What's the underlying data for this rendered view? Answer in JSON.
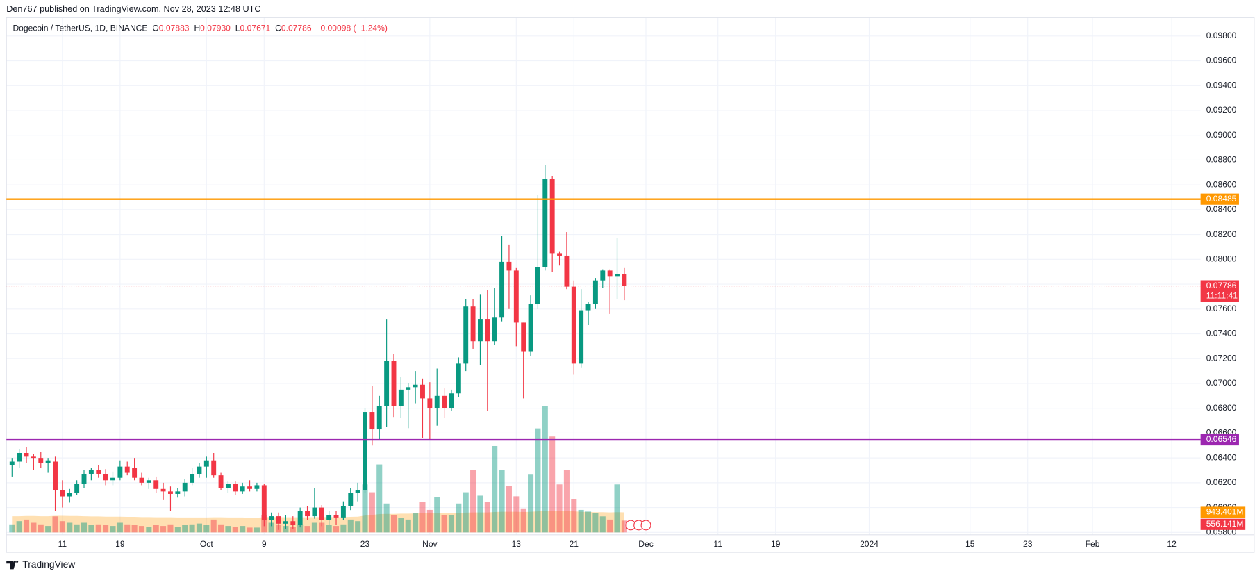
{
  "header": "Den767 published on TradingView.com, Nov 28, 2023 12:48 UTC",
  "footer": "TradingView",
  "chart_data": {
    "type": "candlestick",
    "legend": {
      "symbol": "Dogecoin / TetherUS, 1D, BINANCE",
      "color": "#f23645",
      "fields": [
        {
          "key": "O",
          "value": 0.07883,
          "label": "0.07883"
        },
        {
          "key": "H",
          "value": 0.0793,
          "label": "0.07930"
        },
        {
          "key": "L",
          "value": 0.07671,
          "label": "0.07671"
        },
        {
          "key": "C",
          "value": 0.07786,
          "label": "0.07786"
        }
      ],
      "change": "−0.00098 (−1.24%)"
    },
    "up_color": "#089981",
    "down_color": "#f23645",
    "volume_ma_color": "#ff9800",
    "grid": true,
    "categories": [
      null,
      null,
      null,
      null,
      null,
      null,
      null,
      "11",
      null,
      null,
      null,
      null,
      null,
      null,
      null,
      "19",
      null,
      null,
      null,
      null,
      null,
      null,
      null,
      null,
      null,
      null,
      null,
      "Oct",
      null,
      null,
      null,
      null,
      null,
      null,
      null,
      "9",
      null,
      null,
      null,
      null,
      null,
      null,
      null,
      null,
      null,
      null,
      null,
      null,
      null,
      "23",
      null,
      null,
      null,
      null,
      null,
      null,
      null,
      null,
      "Nov",
      null,
      null,
      null,
      null,
      null,
      null,
      null,
      null,
      null,
      null,
      null,
      "13",
      null,
      null,
      null,
      null,
      null,
      null,
      null,
      "21",
      null,
      null,
      null,
      null,
      null,
      null,
      null,
      null,
      null,
      "Dec",
      null,
      null,
      null,
      null,
      null,
      null,
      null,
      null,
      null,
      "11",
      null,
      null,
      null,
      null,
      null,
      null,
      null,
      "19",
      null,
      null,
      null,
      null,
      null,
      null,
      null,
      null,
      null,
      null,
      null,
      null,
      "2024",
      null,
      null,
      null,
      null,
      null,
      null,
      null,
      null,
      null,
      null,
      null,
      null,
      null,
      "15",
      null,
      null,
      null,
      null,
      null,
      null,
      null,
      "23",
      null,
      null,
      null,
      null,
      null,
      null,
      null,
      null,
      "Feb",
      null,
      null,
      null,
      null,
      null,
      null,
      null,
      null,
      null,
      null,
      "12",
      null,
      null,
      null,
      null
    ],
    "open": [
      0.0634,
      0.0637,
      0.0644,
      0.0641,
      0.064,
      0.0636,
      0.0637,
      0.0614,
      0.0609,
      0.0612,
      0.0619,
      0.0627,
      0.063,
      0.0627,
      0.0622,
      0.0624,
      0.0633,
      0.0632,
      0.0624,
      0.062,
      0.0622,
      0.0615,
      0.0613,
      0.0611,
      0.0613,
      0.062,
      0.0627,
      0.0633,
      0.0638,
      0.0626,
      0.0616,
      0.0619,
      0.0613,
      0.0617,
      0.0615,
      0.0618,
      0.059,
      0.0593,
      0.0587,
      0.0589,
      0.0586,
      0.0597,
      0.0593,
      0.06,
      0.059,
      0.0594,
      0.0592,
      0.0601,
      0.0612,
      0.0614,
      0.0677,
      0.0663,
      0.0682,
      0.0718,
      0.0682,
      0.0695,
      0.0697,
      0.0699,
      0.0688,
      0.068,
      0.069,
      0.068,
      0.0692,
      0.0716,
      0.0762,
      0.0734,
      0.0752,
      0.0734,
      0.0753,
      0.0798,
      0.0791,
      0.0749,
      0.0726,
      0.0764,
      0.0794,
      0.0865,
      0.0805,
      0.0803,
      0.0778,
      0.0716,
      0.0759,
      0.0764,
      0.0783,
      0.0791,
      0.0786,
      0.07883,
      null,
      null,
      null,
      null,
      null,
      null,
      null,
      null,
      null,
      null,
      null,
      null,
      null,
      null,
      null,
      null,
      null,
      null,
      null,
      null,
      null,
      null,
      null,
      null,
      null,
      null,
      null,
      null,
      null,
      null,
      null,
      null,
      null,
      null,
      null,
      null,
      null,
      null,
      null,
      null,
      null,
      null,
      null,
      null,
      null,
      null,
      null,
      null,
      null,
      null,
      null,
      null,
      null,
      null,
      null,
      null,
      null,
      null,
      null,
      null,
      null,
      null,
      null,
      null,
      null,
      null,
      null,
      null,
      null,
      null,
      null,
      null,
      null,
      null,
      null,
      null,
      null,
      null,
      null,
      null
    ],
    "high": [
      0.064,
      0.0647,
      0.0649,
      0.0643,
      0.0645,
      0.064,
      0.0641,
      0.0622,
      0.0615,
      0.0622,
      0.063,
      0.0632,
      0.0634,
      0.0631,
      0.0629,
      0.0638,
      0.0637,
      0.064,
      0.0628,
      0.0624,
      0.0625,
      0.062,
      0.0617,
      0.0616,
      0.0623,
      0.0632,
      0.0636,
      0.0641,
      0.0644,
      0.0628,
      0.0621,
      0.0621,
      0.062,
      0.0622,
      0.062,
      0.0619,
      0.0596,
      0.0596,
      0.0594,
      0.0593,
      0.06,
      0.0601,
      0.0616,
      0.0602,
      0.0597,
      0.0597,
      0.0605,
      0.0616,
      0.062,
      0.068,
      0.0698,
      0.069,
      0.0752,
      0.0724,
      0.0705,
      0.07,
      0.071,
      0.0704,
      0.0701,
      0.0712,
      0.0696,
      0.0695,
      0.0721,
      0.0768,
      0.0768,
      0.0772,
      0.0775,
      0.0777,
      0.0819,
      0.0812,
      0.0793,
      0.0749,
      0.0771,
      0.0852,
      0.0876,
      0.0867,
      0.0806,
      0.0822,
      0.0783,
      0.0776,
      0.0766,
      0.0785,
      0.0792,
      0.0792,
      0.0817,
      0.0793,
      null,
      null,
      null,
      null,
      null,
      null,
      null,
      null,
      null,
      null,
      null,
      null,
      null,
      null,
      null,
      null,
      null,
      null,
      null,
      null,
      null,
      null,
      null,
      null,
      null,
      null,
      null,
      null,
      null,
      null,
      null,
      null,
      null,
      null,
      null,
      null,
      null,
      null,
      null,
      null,
      null,
      null,
      null,
      null,
      null,
      null,
      null,
      null,
      null,
      null,
      null,
      null,
      null,
      null,
      null,
      null,
      null,
      null,
      null,
      null,
      null,
      null,
      null,
      null,
      null,
      null,
      null,
      null,
      null,
      null,
      null,
      null,
      null,
      null,
      null,
      null,
      null,
      null,
      null,
      null
    ],
    "low": [
      0.0625,
      0.0632,
      0.0636,
      0.063,
      0.0632,
      0.0628,
      0.0597,
      0.06,
      0.0604,
      0.061,
      0.0616,
      0.0622,
      0.0624,
      0.0618,
      0.0618,
      0.0622,
      0.0626,
      0.0622,
      0.0618,
      0.0615,
      0.0612,
      0.0606,
      0.0597,
      0.0608,
      0.0609,
      0.0618,
      0.0624,
      0.0624,
      0.0624,
      0.0614,
      0.0612,
      0.061,
      0.0611,
      0.0613,
      0.0613,
      0.0585,
      0.0585,
      0.0582,
      0.0583,
      0.0583,
      0.0584,
      0.059,
      0.0591,
      0.0585,
      0.0586,
      0.0586,
      0.059,
      0.0598,
      0.0605,
      0.0612,
      0.065,
      0.0655,
      0.0665,
      0.0673,
      0.0672,
      0.0664,
      0.0684,
      0.0656,
      0.0655,
      0.0666,
      0.0672,
      0.0678,
      0.0689,
      0.071,
      0.0728,
      0.0715,
      0.0678,
      0.0731,
      0.075,
      0.076,
      0.073,
      0.0688,
      0.0722,
      0.076,
      0.0791,
      0.079,
      0.0795,
      0.0776,
      0.0707,
      0.0713,
      0.0747,
      0.076,
      0.0777,
      0.0756,
      0.0768,
      0.07671,
      null,
      null,
      null,
      null,
      null,
      null,
      null,
      null,
      null,
      null,
      null,
      null,
      null,
      null,
      null,
      null,
      null,
      null,
      null,
      null,
      null,
      null,
      null,
      null,
      null,
      null,
      null,
      null,
      null,
      null,
      null,
      null,
      null,
      null,
      null,
      null,
      null,
      null,
      null,
      null,
      null,
      null,
      null,
      null,
      null,
      null,
      null,
      null,
      null,
      null,
      null,
      null,
      null,
      null,
      null,
      null,
      null,
      null,
      null,
      null,
      null,
      null,
      null,
      null,
      null,
      null,
      null,
      null,
      null,
      null,
      null,
      null,
      null,
      null,
      null,
      null,
      null,
      null,
      null,
      null
    ],
    "close": [
      0.0637,
      0.0644,
      0.0641,
      0.064,
      0.0636,
      0.0638,
      0.0614,
      0.0609,
      0.0612,
      0.0619,
      0.0627,
      0.063,
      0.0627,
      0.0622,
      0.0624,
      0.0633,
      0.0628,
      0.0624,
      0.062,
      0.0622,
      0.0615,
      0.0613,
      0.0611,
      0.0613,
      0.062,
      0.0627,
      0.0633,
      0.0638,
      0.0626,
      0.0616,
      0.0619,
      0.0613,
      0.0617,
      0.0615,
      0.0618,
      0.059,
      0.0593,
      0.0587,
      0.0589,
      0.0586,
      0.0597,
      0.0593,
      0.06,
      0.059,
      0.0594,
      0.0592,
      0.0601,
      0.0612,
      0.0614,
      0.0677,
      0.0663,
      0.0682,
      0.0718,
      0.0682,
      0.0695,
      0.0697,
      0.0699,
      0.0688,
      0.068,
      0.069,
      0.068,
      0.0692,
      0.0716,
      0.0762,
      0.0734,
      0.0752,
      0.0734,
      0.0753,
      0.0798,
      0.0791,
      0.0749,
      0.0726,
      0.0764,
      0.0794,
      0.0865,
      0.0805,
      0.0803,
      0.0778,
      0.0716,
      0.0759,
      0.0764,
      0.0783,
      0.0791,
      0.0786,
      0.07883,
      0.07786,
      null,
      null,
      null,
      null,
      null,
      null,
      null,
      null,
      null,
      null,
      null,
      null,
      null,
      null,
      null,
      null,
      null,
      null,
      null,
      null,
      null,
      null,
      null,
      null,
      null,
      null,
      null,
      null,
      null,
      null,
      null,
      null,
      null,
      null,
      null,
      null,
      null,
      null,
      null,
      null,
      null,
      null,
      null,
      null,
      null,
      null,
      null,
      null,
      null,
      null,
      null,
      null,
      null,
      null,
      null,
      null,
      null,
      null,
      null,
      null,
      null,
      null,
      null,
      null,
      null,
      null,
      null,
      null,
      null,
      null,
      null,
      null,
      null,
      null,
      null,
      null,
      null,
      null,
      null,
      null
    ],
    "volume": [
      377000000.0,
      528000000.0,
      603000000.0,
      452000000.0,
      377000000.0,
      302000000.0,
      754000000.0,
      528000000.0,
      452000000.0,
      377000000.0,
      452000000.0,
      339000000.0,
      377000000.0,
      339000000.0,
      302000000.0,
      452000000.0,
      377000000.0,
      339000000.0,
      302000000.0,
      264000000.0,
      339000000.0,
      302000000.0,
      377000000.0,
      264000000.0,
      339000000.0,
      377000000.0,
      415000000.0,
      339000000.0,
      603000000.0,
      377000000.0,
      302000000.0,
      264000000.0,
      302000000.0,
      226000000.0,
      226000000.0,
      829000000.0,
      452000000.0,
      377000000.0,
      302000000.0,
      264000000.0,
      377000000.0,
      302000000.0,
      452000000.0,
      452000000.0,
      339000000.0,
      302000000.0,
      377000000.0,
      603000000.0,
      528000000.0,
      2260000000.0,
      1890000000.0,
      3200000000.0,
      1360000000.0,
      829000000.0,
      679000000.0,
      603000000.0,
      905000000.0,
      1430000000.0,
      1060000000.0,
      1660000000.0,
      829000000.0,
      829000000.0,
      1360000000.0,
      1890000000.0,
      2940000000.0,
      1730000000.0,
      1430000000.0,
      4070000000.0,
      2940000000.0,
      2190000000.0,
      1700000000.0,
      1130000000.0,
      2720000000.0,
      4900000000.0,
      5960000000.0,
      4520000000.0,
      2260000000.0,
      2940000000.0,
      1580000000.0,
      1060000000.0,
      980000000.0,
      905000000.0,
      754000000.0,
      603000000.0,
      2260000000.0,
      556141000.0,
      null,
      null,
      null,
      null,
      null,
      null,
      null,
      null,
      null,
      null,
      null,
      null,
      null,
      null,
      null,
      null,
      null,
      null,
      null,
      null,
      null,
      null,
      null,
      null,
      null,
      null,
      null,
      null,
      null,
      null,
      null,
      null,
      null,
      null,
      null,
      null,
      null,
      null,
      null,
      null,
      null,
      null,
      null,
      null,
      null,
      null,
      null,
      null,
      null,
      null,
      null,
      null,
      null,
      null,
      null,
      null,
      null,
      null,
      null,
      null,
      null,
      null,
      null,
      null,
      null,
      null,
      null,
      null,
      null,
      null,
      null,
      null,
      null,
      null,
      null,
      null,
      null,
      null,
      null,
      null
    ],
    "volume_ma": [
      760000000.0,
      760000000.0,
      770000000.0,
      770000000.0,
      760000000.0,
      760000000.0,
      780000000.0,
      780000000.0,
      770000000.0,
      770000000.0,
      760000000.0,
      750000000.0,
      750000000.0,
      740000000.0,
      740000000.0,
      740000000.0,
      730000000.0,
      730000000.0,
      720000000.0,
      720000000.0,
      710000000.0,
      710000000.0,
      710000000.0,
      700000000.0,
      700000000.0,
      700000000.0,
      700000000.0,
      700000000.0,
      710000000.0,
      710000000.0,
      700000000.0,
      700000000.0,
      700000000.0,
      690000000.0,
      690000000.0,
      720000000.0,
      720000000.0,
      720000000.0,
      710000000.0,
      710000000.0,
      710000000.0,
      710000000.0,
      720000000.0,
      720000000.0,
      720000000.0,
      710000000.0,
      720000000.0,
      730000000.0,
      740000000.0,
      790000000.0,
      820000000.0,
      860000000.0,
      870000000.0,
      870000000.0,
      880000000.0,
      880000000.0,
      890000000.0,
      900000000.0,
      900000000.0,
      910000000.0,
      910000000.0,
      910000000.0,
      920000000.0,
      930000000.0,
      940000000.0,
      940000000.0,
      940000000.0,
      960000000.0,
      970000000.0,
      970000000.0,
      970000000.0,
      960000000.0,
      970000000.0,
      990000000.0,
      1010000000.0,
      1020000000.0,
      1000000000.0,
      1000000000.0,
      990000000.0,
      970000000.0,
      960000000.0,
      950000000.0,
      950000000.0,
      940000000.0,
      950000000.0,
      943401000.0,
      null,
      null,
      null,
      null,
      null,
      null,
      null,
      null,
      null,
      null,
      null,
      null,
      null,
      null,
      null,
      null,
      null,
      null,
      null,
      null,
      null,
      null,
      null,
      null,
      null,
      null,
      null,
      null,
      null,
      null,
      null,
      null,
      null,
      null,
      null,
      null,
      null,
      null,
      null,
      null,
      null,
      null,
      null,
      null,
      null,
      null,
      null,
      null,
      null,
      null,
      null,
      null,
      null,
      null,
      null,
      null,
      null,
      null,
      null,
      null,
      null,
      null,
      null,
      null,
      null,
      null,
      null,
      null,
      null,
      null,
      null,
      null,
      null,
      null,
      null,
      null,
      null,
      null,
      null,
      null
    ],
    "volume_labels": [
      {
        "value": 943401000.0,
        "label": "943.401M",
        "color": "#ff9800"
      },
      {
        "value": 556141000.0,
        "label": "556.141M",
        "color": "#f23645"
      }
    ],
    "ylim": [
      0.058,
      0.09948
    ],
    "yticks": [
      {
        "value": 0.058,
        "label": "0.05800"
      },
      {
        "value": 0.06,
        "label": "0.06000"
      },
      {
        "value": 0.062,
        "label": "0.06200"
      },
      {
        "value": 0.064,
        "label": "0.06400"
      },
      {
        "value": 0.066,
        "label": "0.06600"
      },
      {
        "value": 0.068,
        "label": "0.06800"
      },
      {
        "value": 0.07,
        "label": "0.07000"
      },
      {
        "value": 0.072,
        "label": "0.07200"
      },
      {
        "value": 0.074,
        "label": "0.07400"
      },
      {
        "value": 0.076,
        "label": "0.07600"
      },
      {
        "value": 0.078,
        "label": "0.07800"
      },
      {
        "value": 0.08,
        "label": "0.08000"
      },
      {
        "value": 0.082,
        "label": "0.08200"
      },
      {
        "value": 0.084,
        "label": "0.08400"
      },
      {
        "value": 0.086,
        "label": "0.08600"
      },
      {
        "value": 0.088,
        "label": "0.08800"
      },
      {
        "value": 0.09,
        "label": "0.09000"
      },
      {
        "value": 0.092,
        "label": "0.09200"
      },
      {
        "value": 0.094,
        "label": "0.09400"
      },
      {
        "value": 0.096,
        "label": "0.09600"
      },
      {
        "value": 0.098,
        "label": "0.09800"
      }
    ],
    "levels": [
      {
        "value": 0.08485,
        "label": "0.08485",
        "color": "#ff9800"
      },
      {
        "value": 0.06546,
        "label": "0.06546",
        "color": "#9c27b0"
      }
    ],
    "last_price": {
      "value": 0.07786,
      "label": "0.07786",
      "countdown": "11:11:41",
      "color": "#f23645"
    }
  }
}
